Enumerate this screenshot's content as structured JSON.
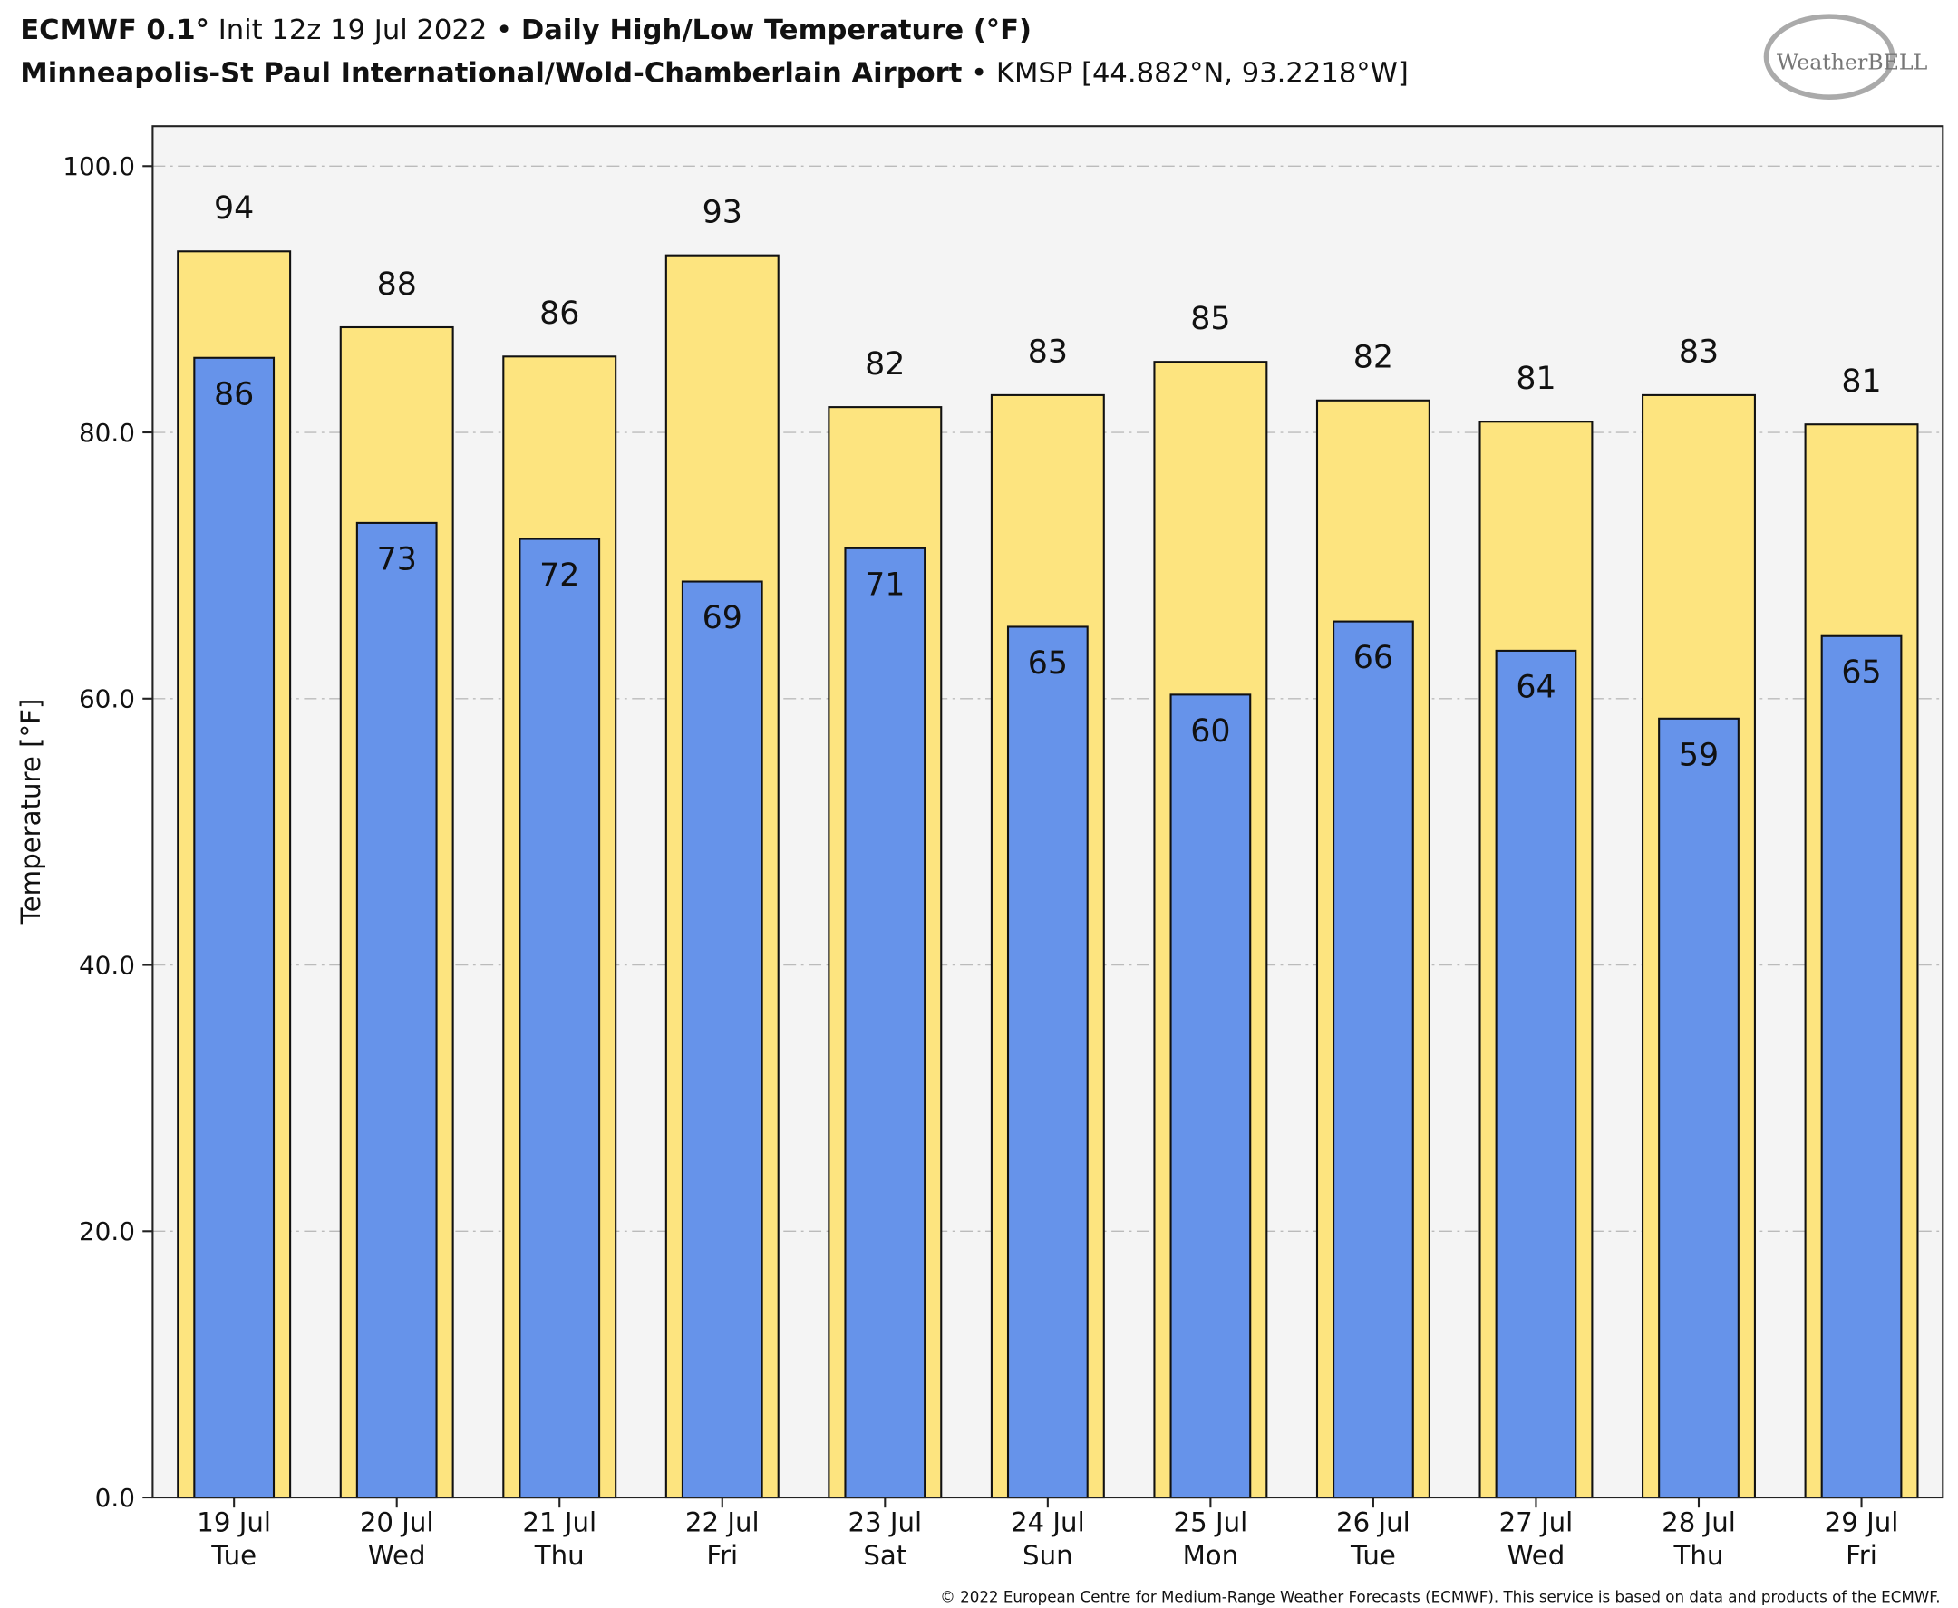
{
  "chart_data": {
    "type": "bar",
    "title": [
      "ECMWF 0.1°",
      " Init 12z 19 Jul 2022 • ",
      "Daily High/Low Temperature (°F)"
    ],
    "subtitle": [
      "Minneapolis-St Paul International/Wold-Chamberlain Airport",
      " • KMSP [44.882°N, 93.2218°W]"
    ],
    "logo": "WeatherBELL",
    "footer": "© 2022 European Centre for Medium-Range Weather Forecasts (ECMWF). This service is based on data and products of the ECMWF.",
    "y_label": "Temperature [°F]",
    "categories": [
      [
        "19 Jul",
        "Tue"
      ],
      [
        "20 Jul",
        "Wed"
      ],
      [
        "21 Jul",
        "Thu"
      ],
      [
        "22 Jul",
        "Fri"
      ],
      [
        "23 Jul",
        "Sat"
      ],
      [
        "24 Jul",
        "Sun"
      ],
      [
        "25 Jul",
        "Mon"
      ],
      [
        "26 Jul",
        "Tue"
      ],
      [
        "27 Jul",
        "Wed"
      ],
      [
        "28 Jul",
        "Thu"
      ],
      [
        "29 Jul",
        "Fri"
      ]
    ],
    "series": [
      {
        "color": "#fde47f",
        "values": [
          93.6,
          87.9,
          85.7,
          93.3,
          81.9,
          82.8,
          85.3,
          82.4,
          80.8,
          82.8,
          80.6
        ],
        "value_labels": [
          "94",
          "88",
          "86",
          "93",
          "82",
          "83",
          "85",
          "82",
          "81",
          "83",
          "81"
        ]
      },
      {
        "color": "#6693ea",
        "values": [
          85.6,
          73.2,
          72.0,
          68.8,
          71.3,
          65.4,
          60.3,
          65.8,
          63.6,
          58.5,
          64.7
        ],
        "value_labels": [
          "86",
          "73",
          "72",
          "69",
          "71",
          "65",
          "60",
          "66",
          "64",
          "59",
          "65"
        ]
      }
    ],
    "ylim": [
      0,
      103
    ],
    "yticks": [
      {
        "value": 0,
        "label": "0.0"
      },
      {
        "value": 20,
        "label": "20.0"
      },
      {
        "value": 40,
        "label": "40.0"
      },
      {
        "value": 60,
        "label": "60.0"
      },
      {
        "value": 80,
        "label": "80.0"
      },
      {
        "value": 100,
        "label": "100.0"
      }
    ],
    "grid": true
  }
}
